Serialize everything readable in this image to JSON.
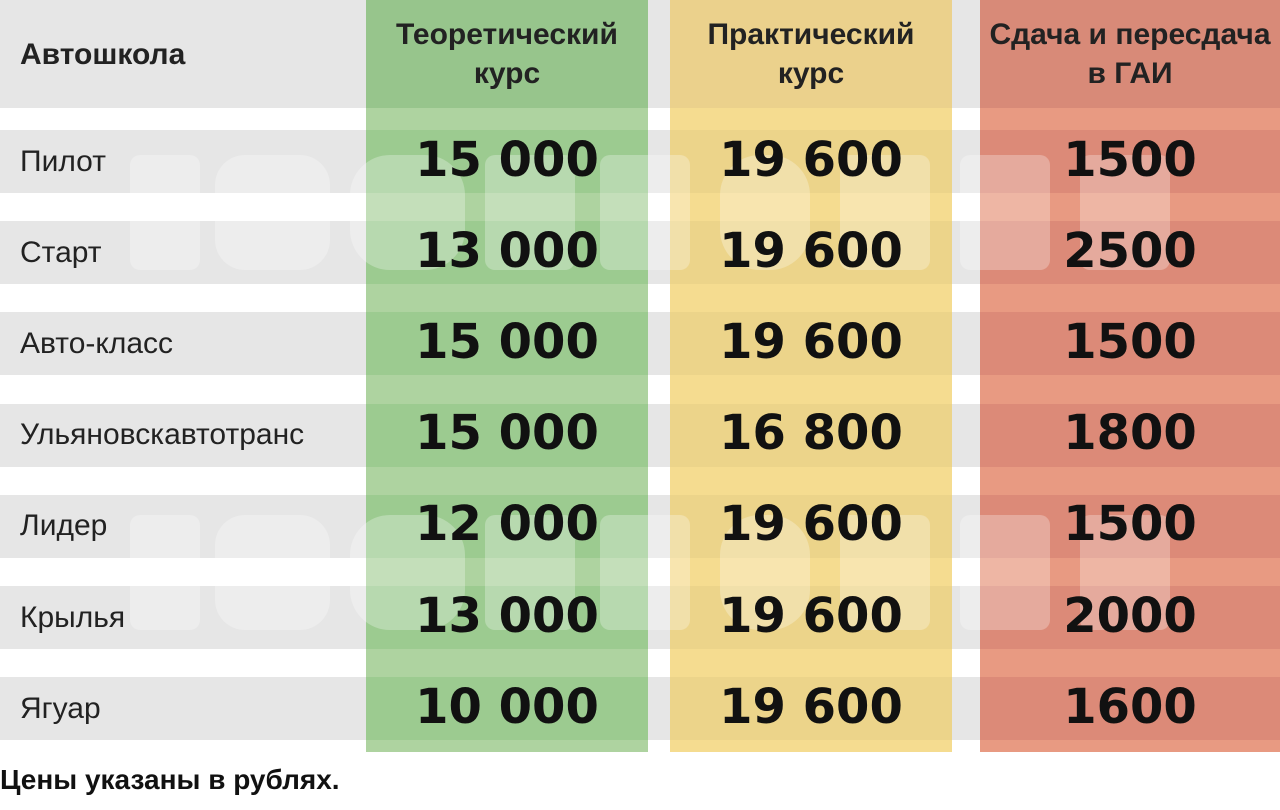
{
  "chart_data": {
    "type": "table",
    "columns": [
      "Автошкола",
      "Теоретический курс",
      "Практический курс",
      "Сдача и пересдача в ГАИ"
    ],
    "rows": [
      {
        "name": "Пилот",
        "values": [
          "15 000",
          "19 600",
          "1500"
        ]
      },
      {
        "name": "Старт",
        "values": [
          "13 000",
          "19 600",
          "2500"
        ]
      },
      {
        "name": "Авто-класс",
        "values": [
          "15 000",
          "19 600",
          "1500"
        ]
      },
      {
        "name": "Ульяновскавтотранс",
        "values": [
          "15 000",
          "16 800",
          "1800"
        ]
      },
      {
        "name": "Лидер",
        "values": [
          "12 000",
          "19 600",
          "1500"
        ]
      },
      {
        "name": "Крылья",
        "values": [
          "13 000",
          "19 600",
          "2000"
        ]
      },
      {
        "name": "Ягуар",
        "values": [
          "10 000",
          "19 600",
          "1600"
        ]
      }
    ],
    "footnote": "Цены указаны в рублях.",
    "colors": {
      "band": "#e6e6e6",
      "green_header": "#97c58c",
      "green_row_light": "#aed3a0",
      "green_row_dark": "#9ccb90",
      "yellow_header": "#ebd18c",
      "yellow_row_light": "#f5dc90",
      "yellow_row_dark": "#ecd48a",
      "red_header": "#d88a78",
      "red_row_light": "#e89a82",
      "red_row_dark": "#dc8a78"
    }
  }
}
